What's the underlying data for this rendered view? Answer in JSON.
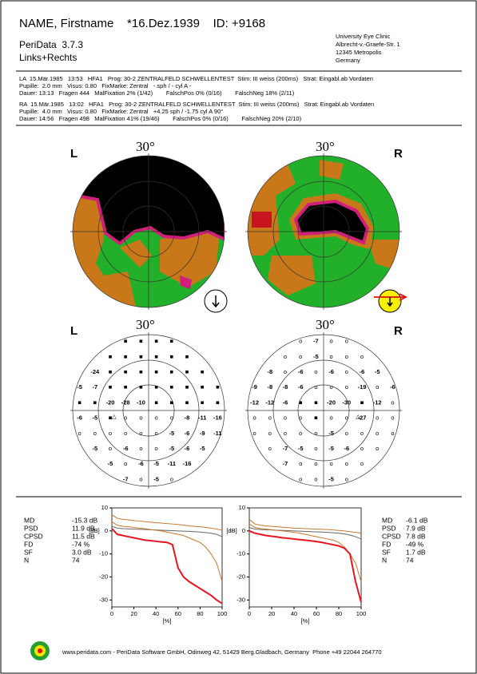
{
  "header": {
    "name_line": "NAME, Firstname    *16.Dez.1939    ID: +9168",
    "software": "PeriData  3.7.3",
    "eyes": "Links+Rechts",
    "clinic": [
      "University Eye Clinic",
      "Albrecht-v.-Graefe-Str. 1",
      "12345 Metropolis",
      "Germany"
    ]
  },
  "exams": [
    {
      "lines": [
        "LA  15.Mär.1985   13:53   HFA1   Prog: 30-2 ZENTRALFELD SCHWELLENTEST  Stim: III weiss (200ms)   Strat: Eingabl.ab Vordaten",
        "Pupille:  2.0 mm   Visus: 0.80   FixMarke: Zentral   - sph / - cyl A -",
        "Dauer: 13:13   Fragen 444   MalFixation 2% (1/42)        FalschPos 0% (0/16)        FalschNeg 18% (2/11)"
      ]
    },
    {
      "lines": [
        "RA  15.Mär.1985   13:02   HFA1   Prog: 30-2 ZENTRALFELD SCHWELLENTEST  Stim: III weiss (200ms)   Strat: Eingabl.ab Vordaten",
        "Pupille:  4.0 mm   Visus: 0.80   FixMarke: Zentral   +4.25 sph / -1.75 cyl A 90°",
        "Dauer: 14:56   Fragen 498   MalFixation 41% (19/46)        FalschPos 0% (0/16)        FalschNeg 20% (2/10)"
      ]
    }
  ],
  "maps": [
    {
      "eye": "L",
      "scale": "30°"
    },
    {
      "eye": "R",
      "scale": "30°"
    }
  ],
  "value_plots": [
    {
      "eye": "L",
      "scale": "30°",
      "blind_spot": "△",
      "rows": [
        [
          "■",
          "■",
          "■",
          "■"
        ],
        [
          "■",
          "■",
          "■",
          "■",
          "■",
          "■"
        ],
        [
          -24,
          "■",
          "■",
          "■",
          "■",
          "■",
          "■",
          "■"
        ],
        [
          -5,
          -7,
          "■",
          "■",
          "■",
          "■",
          "■",
          "■",
          "■",
          "■"
        ],
        [
          "■",
          "■",
          -20,
          -28,
          -10,
          "■",
          "■",
          "■",
          "■",
          "■"
        ],
        [
          -6,
          -5,
          "■",
          "o",
          "o",
          "o",
          "o",
          -8,
          -11,
          -16
        ],
        [
          "o",
          "o",
          "o",
          "o",
          "o",
          "o",
          -5,
          -6,
          -9,
          -11
        ],
        [
          -5,
          "o",
          -6,
          "o",
          "o",
          -5,
          -6,
          -5
        ],
        [
          -5,
          "o",
          -6,
          -5,
          -11,
          -16
        ],
        [
          -7,
          "o",
          -5,
          "o"
        ]
      ]
    },
    {
      "eye": "R",
      "scale": "30°",
      "blind_spot": "△",
      "rows": [
        [
          "o",
          -7,
          "o",
          "o"
        ],
        [
          "o",
          "o",
          -5,
          "o",
          "o",
          "o"
        ],
        [
          -8,
          "o",
          -6,
          "o",
          -6,
          "o",
          -6,
          -5
        ],
        [
          -9,
          -8,
          -8,
          -6,
          "o",
          "o",
          "o",
          -19,
          "o",
          -6
        ],
        [
          -12,
          -12,
          -6,
          "■",
          "■",
          -20,
          -30,
          "■",
          -12,
          "o"
        ],
        [
          "o",
          "o",
          "o",
          "o",
          "■",
          "o",
          "o",
          -27,
          "o",
          "o"
        ],
        [
          "o",
          "o",
          "o",
          "o",
          "o",
          -5,
          "o",
          "o",
          "o",
          "o"
        ],
        [
          "o",
          -7,
          -5,
          "o",
          -5,
          -6,
          "o",
          "o"
        ],
        [
          -7,
          "o",
          "o",
          "o",
          "o",
          "o"
        ],
        [
          "o",
          "o",
          -5,
          "o"
        ]
      ]
    }
  ],
  "stats": [
    {
      "labels": [
        "MD",
        "PSD",
        "CPSD",
        "FD",
        "SF",
        "N"
      ],
      "values": [
        "-15.3 dB",
        "11.9 dB",
        "11.5 dB",
        "-74 %",
        "3.0 dB",
        "74"
      ]
    },
    {
      "labels": [
        "MD",
        "PSD",
        "CPSD",
        "FD",
        "SF",
        "N"
      ],
      "values": [
        "-6.1 dB",
        "7.9 dB",
        "7.8 dB",
        "-49 %",
        "1.7 dB",
        "74"
      ]
    }
  ],
  "chart_data": [
    {
      "type": "line",
      "xlabel": "[%]",
      "ylabel": "[dB]",
      "xlim": [
        0,
        100
      ],
      "ylim": [
        -33,
        10
      ],
      "xticks": [
        0,
        20,
        40,
        60,
        80,
        100
      ],
      "yticks": [
        -30,
        -20,
        -10,
        0,
        10
      ],
      "x": [
        0,
        5,
        10,
        15,
        20,
        25,
        30,
        35,
        40,
        45,
        50,
        55,
        60,
        65,
        70,
        75,
        80,
        85,
        90,
        95,
        100
      ],
      "series": [
        {
          "color": "#c8782e",
          "values": [
            7,
            5.5,
            5,
            4.8,
            4.5,
            4.3,
            4,
            3.8,
            3.6,
            3.4,
            3.2,
            3,
            2.8,
            2.5,
            2.2,
            2,
            1.8,
            1.5,
            1.2,
            0.8,
            0.3
          ]
        },
        {
          "color": "#666666",
          "values": [
            2,
            1.2,
            1,
            0.9,
            0.8,
            0.7,
            0.6,
            0.5,
            0.4,
            0.3,
            0.2,
            0.1,
            0,
            -0.1,
            -0.2,
            -0.3,
            -0.5,
            -0.7,
            -1,
            -1.5,
            -2.5
          ]
        },
        {
          "color": "#c8782e",
          "values": [
            4,
            2.5,
            2,
            1.8,
            1.5,
            1.2,
            1,
            0.6,
            0.3,
            0,
            -0.5,
            -1,
            -1.5,
            -2,
            -3,
            -4,
            -5,
            -7,
            -10,
            -14,
            -22
          ]
        },
        {
          "color": "#e8141e",
          "values": [
            1,
            -1.5,
            -2,
            -2.5,
            -3,
            -3.5,
            -4,
            -4.2,
            -4.5,
            -4.8,
            -5,
            -6,
            -16,
            -20,
            -22,
            -23.5,
            -25,
            -26.5,
            -28,
            -30,
            -31.5
          ]
        }
      ]
    },
    {
      "type": "line",
      "xlabel": "[%]",
      "ylabel": "[dB]",
      "xlim": [
        0,
        100
      ],
      "ylim": [
        -33,
        10
      ],
      "xticks": [
        0,
        20,
        40,
        60,
        80,
        100
      ],
      "yticks": [
        -30,
        -20,
        -10,
        0,
        10
      ],
      "x": [
        0,
        5,
        10,
        15,
        20,
        25,
        30,
        35,
        40,
        45,
        50,
        55,
        60,
        65,
        70,
        75,
        80,
        85,
        90,
        95,
        100
      ],
      "series": [
        {
          "color": "#c8782e",
          "values": [
            5,
            3,
            2.5,
            2.2,
            2,
            1.8,
            1.6,
            1.4,
            1.2,
            1.1,
            1,
            0.9,
            0.8,
            0.7,
            0.6,
            0.4,
            0.2,
            0,
            -0.3,
            -0.6,
            -1
          ]
        },
        {
          "color": "#666666",
          "values": [
            1.5,
            0.8,
            0.6,
            0.5,
            0.4,
            0.3,
            0.2,
            0.1,
            0,
            -0.1,
            -0.2,
            -0.3,
            -0.4,
            -0.5,
            -0.6,
            -0.8,
            -1,
            -1.3,
            -1.8,
            -2.5,
            -3.5
          ]
        },
        {
          "color": "#c8782e",
          "values": [
            3,
            1.5,
            1,
            0.8,
            0.5,
            0.2,
            0,
            -0.3,
            -0.6,
            -1,
            -1.5,
            -2,
            -2.5,
            -3,
            -3.5,
            -4,
            -5,
            -7,
            -10,
            -14,
            -22
          ]
        },
        {
          "color": "#e8141e",
          "values": [
            0,
            -1,
            -1.5,
            -2,
            -2.3,
            -2.6,
            -3,
            -3.2,
            -3.5,
            -3.8,
            -4,
            -4.3,
            -4.6,
            -5,
            -5.5,
            -6,
            -6.5,
            -7.5,
            -10,
            -22,
            -31
          ]
        }
      ]
    }
  ],
  "footer": "www.peridata.com - PeriData Software GmbH, Odinweg 42, 51429 Berg.Gladbach, Germany  Phone +49 22044 264770"
}
